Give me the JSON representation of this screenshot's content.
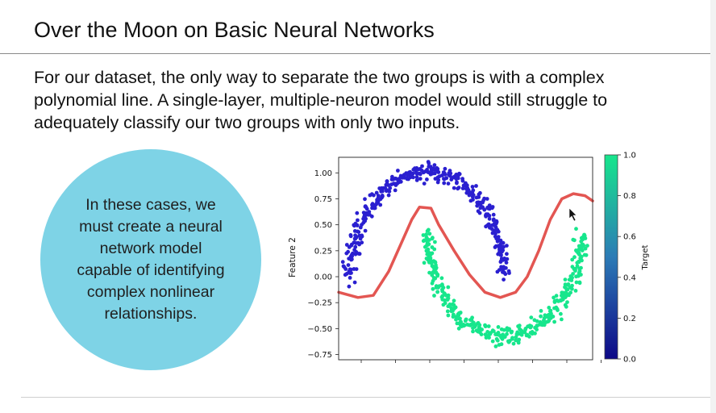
{
  "slide": {
    "title": "Over the Moon on Basic Neural Networks",
    "body": "For our dataset, the only way to separate the two groups is with a complex polynomial line. A single-layer, multiple-neuron model would still struggle to adequately classify our two groups with only two inputs.",
    "callout": "In these cases, we must create a neural network model capable of identifying complex nonlinear relationships."
  },
  "colors": {
    "circle": "#7ed3e6",
    "class0": "#2a1fd0",
    "class1": "#17e68c",
    "boundary": "#e0443f"
  },
  "chart_data": {
    "type": "scatter",
    "ylabel": "Feature 2",
    "xlabel": "",
    "ylim": [
      -0.8,
      1.15
    ],
    "xlim": [
      -1.15,
      2.15
    ],
    "yticks": [
      "1.00",
      "0.75",
      "0.50",
      "0.25",
      "0.00",
      "−0.25",
      "−0.50",
      "−0.75"
    ],
    "ytick_values": [
      1.0,
      0.75,
      0.5,
      0.25,
      0.0,
      -0.25,
      -0.5,
      -0.75
    ],
    "series": [
      {
        "target": 0,
        "shape": "upper moon arc",
        "x_range": [
          -1.0,
          1.0
        ],
        "y_range": [
          -0.05,
          1.1
        ]
      },
      {
        "target": 1,
        "shape": "lower moon arc",
        "x_range": [
          0.0,
          2.0
        ],
        "y_range": [
          -0.7,
          0.5
        ]
      }
    ],
    "boundary": [
      [
        -1.15,
        -0.15
      ],
      [
        -0.9,
        -0.2
      ],
      [
        -0.7,
        -0.18
      ],
      [
        -0.5,
        0.05
      ],
      [
        -0.35,
        0.3
      ],
      [
        -0.2,
        0.55
      ],
      [
        -0.1,
        0.67
      ],
      [
        0.05,
        0.66
      ],
      [
        0.15,
        0.5
      ],
      [
        0.35,
        0.25
      ],
      [
        0.55,
        0.02
      ],
      [
        0.75,
        -0.15
      ],
      [
        0.95,
        -0.2
      ],
      [
        1.15,
        -0.15
      ],
      [
        1.3,
        0.0
      ],
      [
        1.45,
        0.25
      ],
      [
        1.6,
        0.55
      ],
      [
        1.75,
        0.75
      ],
      [
        1.9,
        0.8
      ],
      [
        2.05,
        0.78
      ],
      [
        2.15,
        0.73
      ]
    ],
    "colorbar": {
      "label": "Target",
      "ticks": [
        "1.0",
        "0.8",
        "0.6",
        "0.4",
        "0.2",
        "0.0"
      ],
      "tick_values": [
        1.0,
        0.8,
        0.6,
        0.4,
        0.2,
        0.0
      ]
    }
  }
}
